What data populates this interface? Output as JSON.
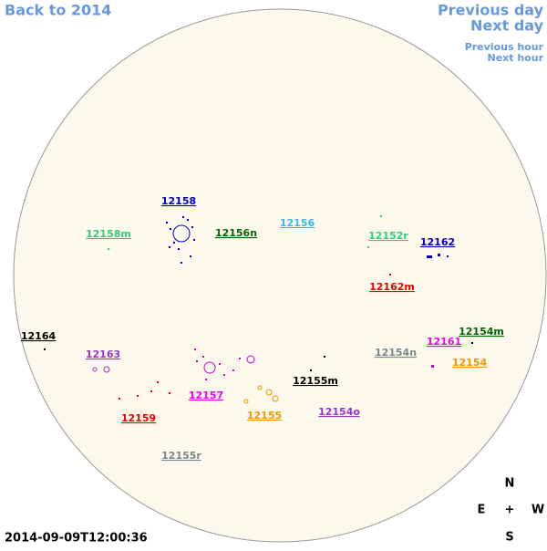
{
  "nav": {
    "back": "Back to 2014",
    "previous_day": "Previous day",
    "next_day": "Next day",
    "previous_hour": "Previous hour",
    "next_hour": "Next hour"
  },
  "regions": [
    {
      "label": "12158",
      "color": "#0000cc"
    },
    {
      "label": "12158m",
      "color": "#33cc77"
    },
    {
      "label": "12156n",
      "color": "#006600"
    },
    {
      "label": "12156",
      "color": "#33bbee"
    },
    {
      "label": "12152r",
      "color": "#33cc77"
    },
    {
      "label": "12162",
      "color": "#0000cc"
    },
    {
      "label": "12162m",
      "color": "#ee0000"
    },
    {
      "label": "12164",
      "color": "#000000"
    },
    {
      "label": "12163",
      "color": "#9933cc"
    },
    {
      "label": "12161",
      "color": "#ee00ee"
    },
    {
      "label": "12154m",
      "color": "#006600"
    },
    {
      "label": "12154n",
      "color": "#778888"
    },
    {
      "label": "12154",
      "color": "#ee9900"
    },
    {
      "label": "12157",
      "color": "#ee00ee"
    },
    {
      "label": "12155m",
      "color": "#000000"
    },
    {
      "label": "12159",
      "color": "#ee0000"
    },
    {
      "label": "12155",
      "color": "#ee9900"
    },
    {
      "label": "12154o",
      "color": "#9933cc"
    },
    {
      "label": "12155r",
      "color": "#778888"
    }
  ],
  "timestamp": "2014-09-09T12:00:36",
  "compass": {
    "north": "N",
    "east": "E",
    "center": "+",
    "west": "W",
    "south": "S"
  }
}
